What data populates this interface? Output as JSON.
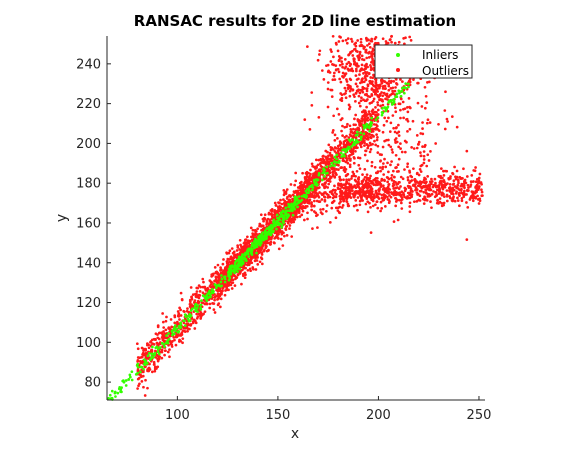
{
  "chart_data": {
    "type": "scatter",
    "title": "RANSAC results for 2D line estimation",
    "xlabel": "x",
    "ylabel": "y",
    "xlim": [
      65,
      253
    ],
    "ylim": [
      71,
      254
    ],
    "xticks": [
      100,
      150,
      200,
      250
    ],
    "yticks": [
      80,
      100,
      120,
      140,
      160,
      180,
      200,
      220,
      240
    ],
    "grid": false,
    "legend_position": "top-right",
    "series": [
      {
        "name": "Inliers",
        "color": "#33ff00",
        "marker": "dot",
        "line_fit": {
          "slope": 1.07,
          "intercept": 0
        },
        "clusters": [
          {
            "x_range": [
              65,
              215
            ],
            "spread": 1.4,
            "count": 420
          },
          {
            "x_range": [
              125,
              160
            ],
            "spread": 1.6,
            "count": 260
          }
        ]
      },
      {
        "name": "Outliers",
        "color": "#ff1a1a",
        "marker": "dot",
        "clusters": [
          {
            "kind": "band",
            "x_range": [
              80,
              200
            ],
            "slope": 1.07,
            "spread": 5,
            "count": 1600
          },
          {
            "kind": "band",
            "x_range": [
              120,
              170
            ],
            "slope": 1.07,
            "spread": 3.5,
            "count": 1100
          },
          {
            "kind": "blob",
            "center": [
              197,
              238
            ],
            "size": [
              11,
              12
            ],
            "count": 650
          },
          {
            "kind": "horizontal",
            "x_range": [
              180,
              252
            ],
            "y": 177,
            "spread": 4,
            "count": 700
          },
          {
            "kind": "blob",
            "center": [
              203,
              200
            ],
            "size": [
              16,
              16
            ],
            "count": 250
          },
          {
            "kind": "band",
            "x_range": [
              168,
              200
            ],
            "slope": 0.3,
            "base": [
              168,
              170
            ],
            "spread": 5,
            "count": 150
          }
        ]
      }
    ]
  },
  "legend": {
    "inliers_label": "Inliers",
    "outliers_label": "Outliers"
  },
  "colors": {
    "inliers": "#33ff00",
    "outliers": "#ff1a1a",
    "axis": "#262626"
  }
}
